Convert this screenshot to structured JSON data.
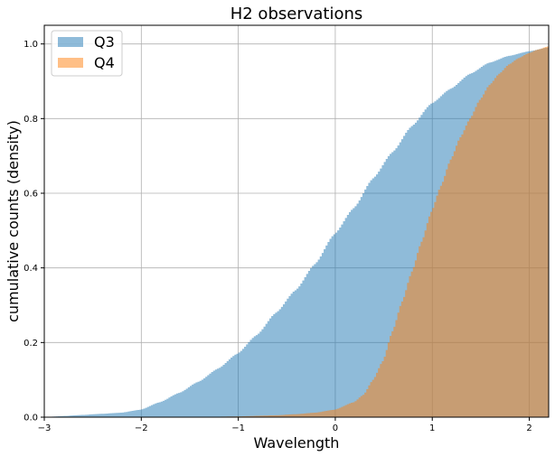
{
  "chart_data": {
    "type": "area",
    "title": "H2 observations",
    "xlabel": "Wavelength",
    "ylabel": "cumulative counts (density)",
    "xlim": [
      -3,
      2.2
    ],
    "ylim": [
      0,
      1.05
    ],
    "xticks": [
      -3,
      -2,
      -1,
      0,
      1,
      2
    ],
    "xtick_labels": [
      "−3",
      "−2",
      "−1",
      "0",
      "1",
      "2"
    ],
    "yticks": [
      0.0,
      0.2,
      0.4,
      0.6,
      0.8,
      1.0
    ],
    "ytick_labels": [
      "0.0",
      "0.2",
      "0.4",
      "0.6",
      "0.8",
      "1.0"
    ],
    "grid": true,
    "legend_position": "top-left",
    "series": [
      {
        "name": "Q3",
        "color": "#1f77b4",
        "alpha": 0.5,
        "x": [
          -3.0,
          -2.8,
          -2.6,
          -2.4,
          -2.2,
          -2.0,
          -1.8,
          -1.6,
          -1.4,
          -1.2,
          -1.0,
          -0.8,
          -0.6,
          -0.4,
          -0.2,
          0.0,
          0.2,
          0.4,
          0.6,
          0.8,
          1.0,
          1.2,
          1.4,
          1.6,
          1.8,
          2.0,
          2.2
        ],
        "y": [
          0.0,
          0.003,
          0.006,
          0.009,
          0.012,
          0.02,
          0.04,
          0.065,
          0.095,
          0.13,
          0.17,
          0.22,
          0.28,
          0.34,
          0.41,
          0.49,
          0.56,
          0.64,
          0.71,
          0.78,
          0.84,
          0.88,
          0.92,
          0.95,
          0.968,
          0.98,
          0.99
        ]
      },
      {
        "name": "Q4",
        "color": "#ff7f0e",
        "alpha": 0.5,
        "x": [
          -3.0,
          -1.5,
          -1.0,
          -0.6,
          -0.4,
          -0.2,
          0.0,
          0.2,
          0.3,
          0.4,
          0.5,
          0.6,
          0.7,
          0.8,
          0.9,
          1.0,
          1.1,
          1.2,
          1.3,
          1.4,
          1.5,
          1.6,
          1.7,
          1.8,
          1.9,
          2.0,
          2.1,
          2.2
        ],
        "y": [
          0.0,
          0.0,
          0.002,
          0.005,
          0.008,
          0.012,
          0.02,
          0.04,
          0.06,
          0.1,
          0.15,
          0.23,
          0.31,
          0.39,
          0.47,
          0.55,
          0.62,
          0.69,
          0.75,
          0.8,
          0.85,
          0.89,
          0.92,
          0.945,
          0.962,
          0.975,
          0.985,
          0.993
        ]
      }
    ]
  }
}
